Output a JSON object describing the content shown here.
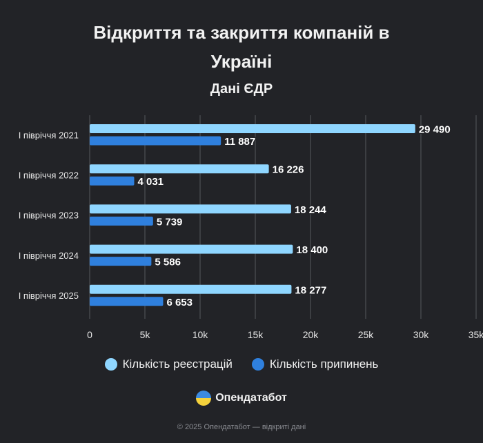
{
  "title_line1": "Відкриття та закриття компаній в",
  "title_line2": "Україні",
  "subtitle": "Дані ЄДР",
  "brand": {
    "name": "Опендатабот",
    "logo_icon": "opendatabot-logo-icon"
  },
  "footer": "© 2025 Опендатабот — відкриті дані",
  "colors": {
    "background": "#222327",
    "registrations": "#8fd6ff",
    "terminations": "#2f80de",
    "grid": "#55585e"
  },
  "chart_data": {
    "type": "bar",
    "orientation": "horizontal",
    "categories": [
      "І півріччя 2021",
      "І півріччя 2022",
      "І півріччя 2023",
      "І півріччя 2024",
      "І півріччя 2025"
    ],
    "series": [
      {
        "name": "Кількість реєстрацій",
        "values": [
          29490,
          16226,
          18244,
          18400,
          18277
        ],
        "labels": [
          "29 490",
          "16 226",
          "18 244",
          "18 400",
          "18 277"
        ]
      },
      {
        "name": "Кількість припинень",
        "values": [
          11887,
          4031,
          5739,
          5586,
          6653
        ],
        "labels": [
          "11 887",
          "4 031",
          "5 739",
          "5 586",
          "6 653"
        ]
      }
    ],
    "x_ticks": [
      "0",
      "5k",
      "10k",
      "15k",
      "20k",
      "25k",
      "30k",
      "35k"
    ],
    "xlim": [
      0,
      35000
    ],
    "grid": true,
    "legend": "bottom"
  }
}
